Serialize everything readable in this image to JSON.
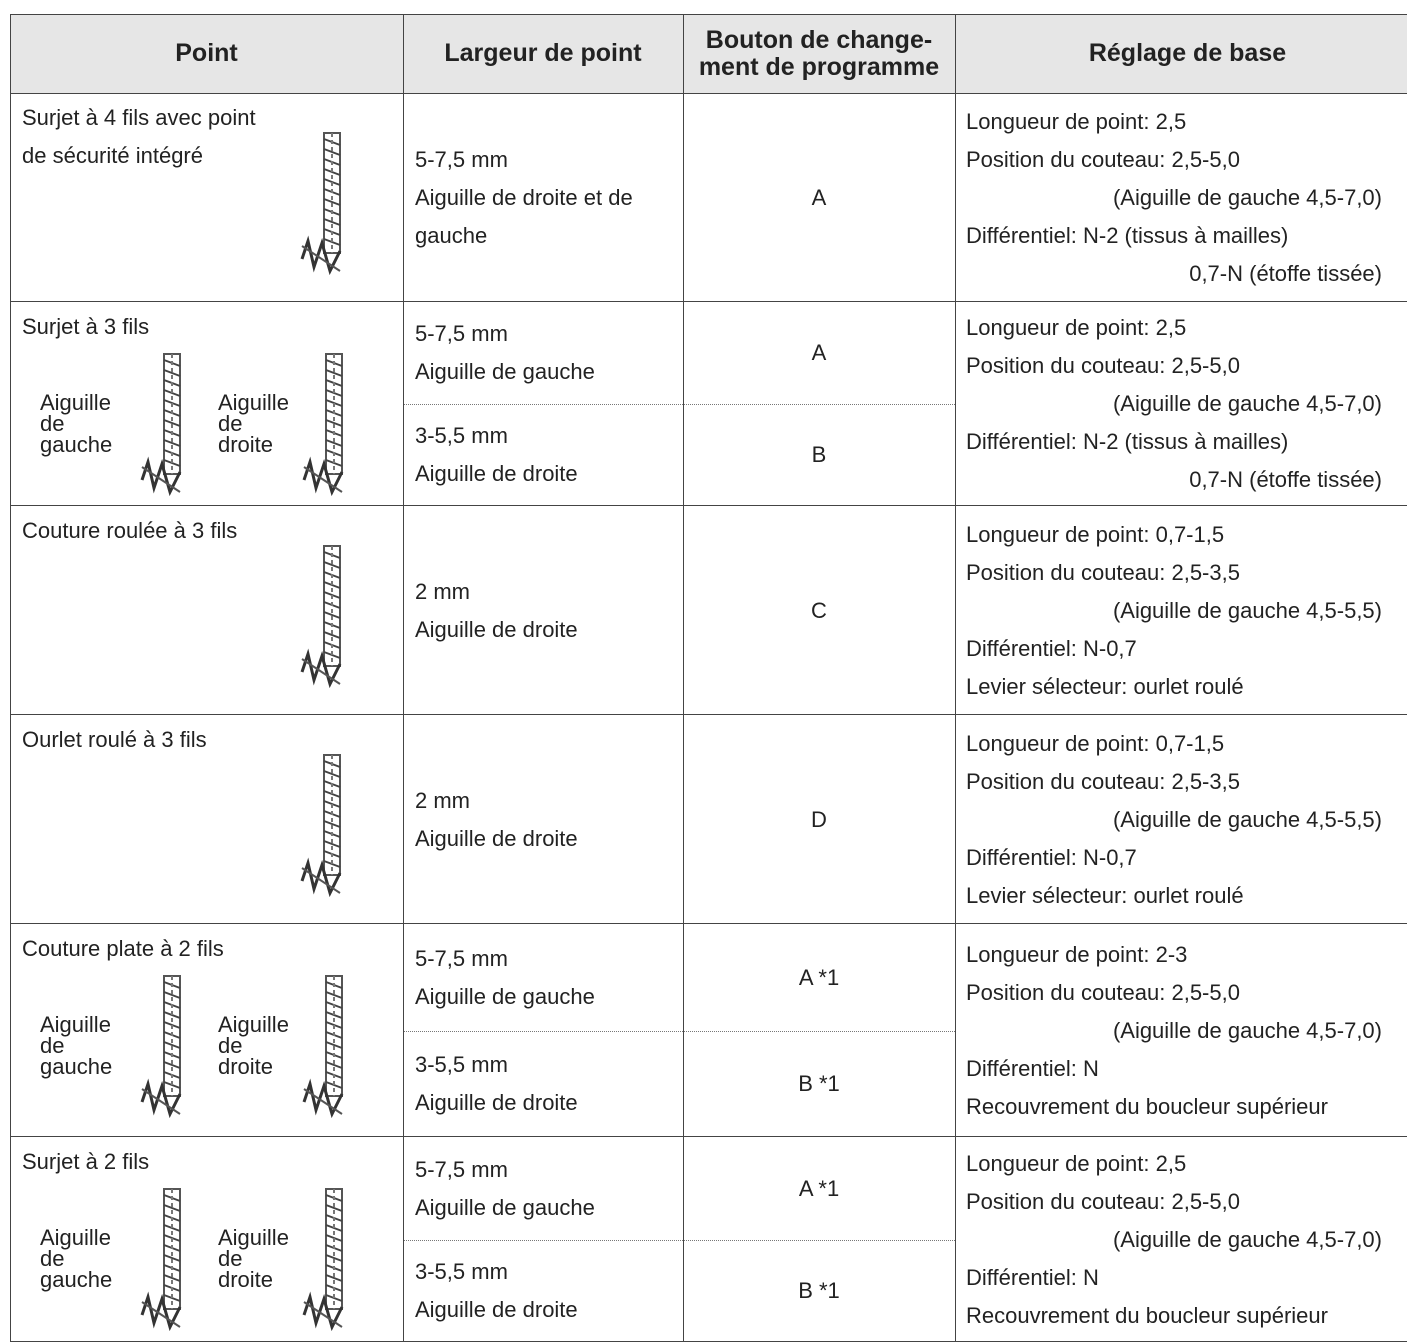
{
  "header": [
    "Point",
    "Largeur de point",
    [
      "Bouton de change-",
      "ment de programme"
    ],
    "Réglage de base"
  ],
  "rows": [
    {
      "point": [
        "Surjet à 4 fils avec point",
        "de sécurité intégré"
      ],
      "needles": [],
      "options": [
        {
          "width": [
            "5-7,5 mm",
            "Aiguille de droite et de",
            "gauche"
          ],
          "program": "A"
        }
      ],
      "settings": [
        "Longueur de point: 2,5",
        "Position du couteau: 2,5-5,0",
        "(Aiguille de gauche 4,5-7,0)",
        "Différentiel: N-2 (tissus à mailles)",
        "0,7-N (étoffe tissée)"
      ]
    },
    {
      "point": [
        "Surjet à 3 fils"
      ],
      "needles": [
        [
          "Aiguille",
          "de",
          "gauche"
        ],
        [
          "Aiguille",
          "de",
          "droite"
        ]
      ],
      "options": [
        {
          "width": [
            "5-7,5 mm",
            "Aiguille de gauche"
          ],
          "program": "A"
        },
        {
          "width": [
            "3-5,5 mm",
            "Aiguille de droite"
          ],
          "program": "B"
        }
      ],
      "settings": [
        "Longueur de point: 2,5",
        "Position du couteau: 2,5-5,0",
        "(Aiguille de gauche 4,5-7,0)",
        "Différentiel: N-2 (tissus à mailles)",
        "0,7-N (étoffe tissée)"
      ]
    },
    {
      "point": [
        "Couture roulée à 3 fils"
      ],
      "needles": [],
      "options": [
        {
          "width": [
            "2 mm",
            "Aiguille de droite"
          ],
          "program": "C"
        }
      ],
      "settings": [
        "Longueur de point: 0,7-1,5",
        "Position du couteau: 2,5-3,5",
        "(Aiguille de gauche 4,5-5,5)",
        "Différentiel: N-0,7",
        "Levier sélecteur: ourlet roulé"
      ]
    },
    {
      "point": [
        "Ourlet roulé à 3 fils"
      ],
      "needles": [],
      "options": [
        {
          "width": [
            "2 mm",
            "Aiguille de droite"
          ],
          "program": "D"
        }
      ],
      "settings": [
        "Longueur de point: 0,7-1,5",
        "Position du couteau: 2,5-3,5",
        "(Aiguille de gauche 4,5-5,5)",
        "Différentiel: N-0,7",
        "Levier sélecteur: ourlet roulé"
      ]
    },
    {
      "point": [
        "Couture plate à 2 fils"
      ],
      "needles": [
        [
          "Aiguille",
          "de",
          "gauche"
        ],
        [
          "Aiguille",
          "de",
          "droite"
        ]
      ],
      "options": [
        {
          "width": [
            "5-7,5 mm",
            "Aiguille de gauche"
          ],
          "program": "A *1"
        },
        {
          "width": [
            "3-5,5 mm",
            "Aiguille de droite"
          ],
          "program": "B *1"
        }
      ],
      "settings": [
        "Longueur de point: 2-3",
        "Position du couteau: 2,5-5,0",
        "(Aiguille de gauche 4,5-7,0)",
        "Différentiel: N",
        "Recouvrement du boucleur supérieur"
      ]
    },
    {
      "point": [
        "Surjet à 2 fils"
      ],
      "needles": [
        [
          "Aiguille",
          "de",
          "gauche"
        ],
        [
          "Aiguille",
          "de",
          "droite"
        ]
      ],
      "options": [
        {
          "width": [
            "5-7,5 mm",
            "Aiguille de gauche"
          ],
          "program": "A *1"
        },
        {
          "width": [
            "3-5,5 mm",
            "Aiguille de droite"
          ],
          "program": "B *1"
        }
      ],
      "settings": [
        "Longueur de point: 2,5",
        "Position du couteau: 2,5-5,0",
        "(Aiguille de gauche 4,5-7,0)",
        "Différentiel: N",
        "Recouvrement du boucleur supérieur"
      ]
    }
  ]
}
